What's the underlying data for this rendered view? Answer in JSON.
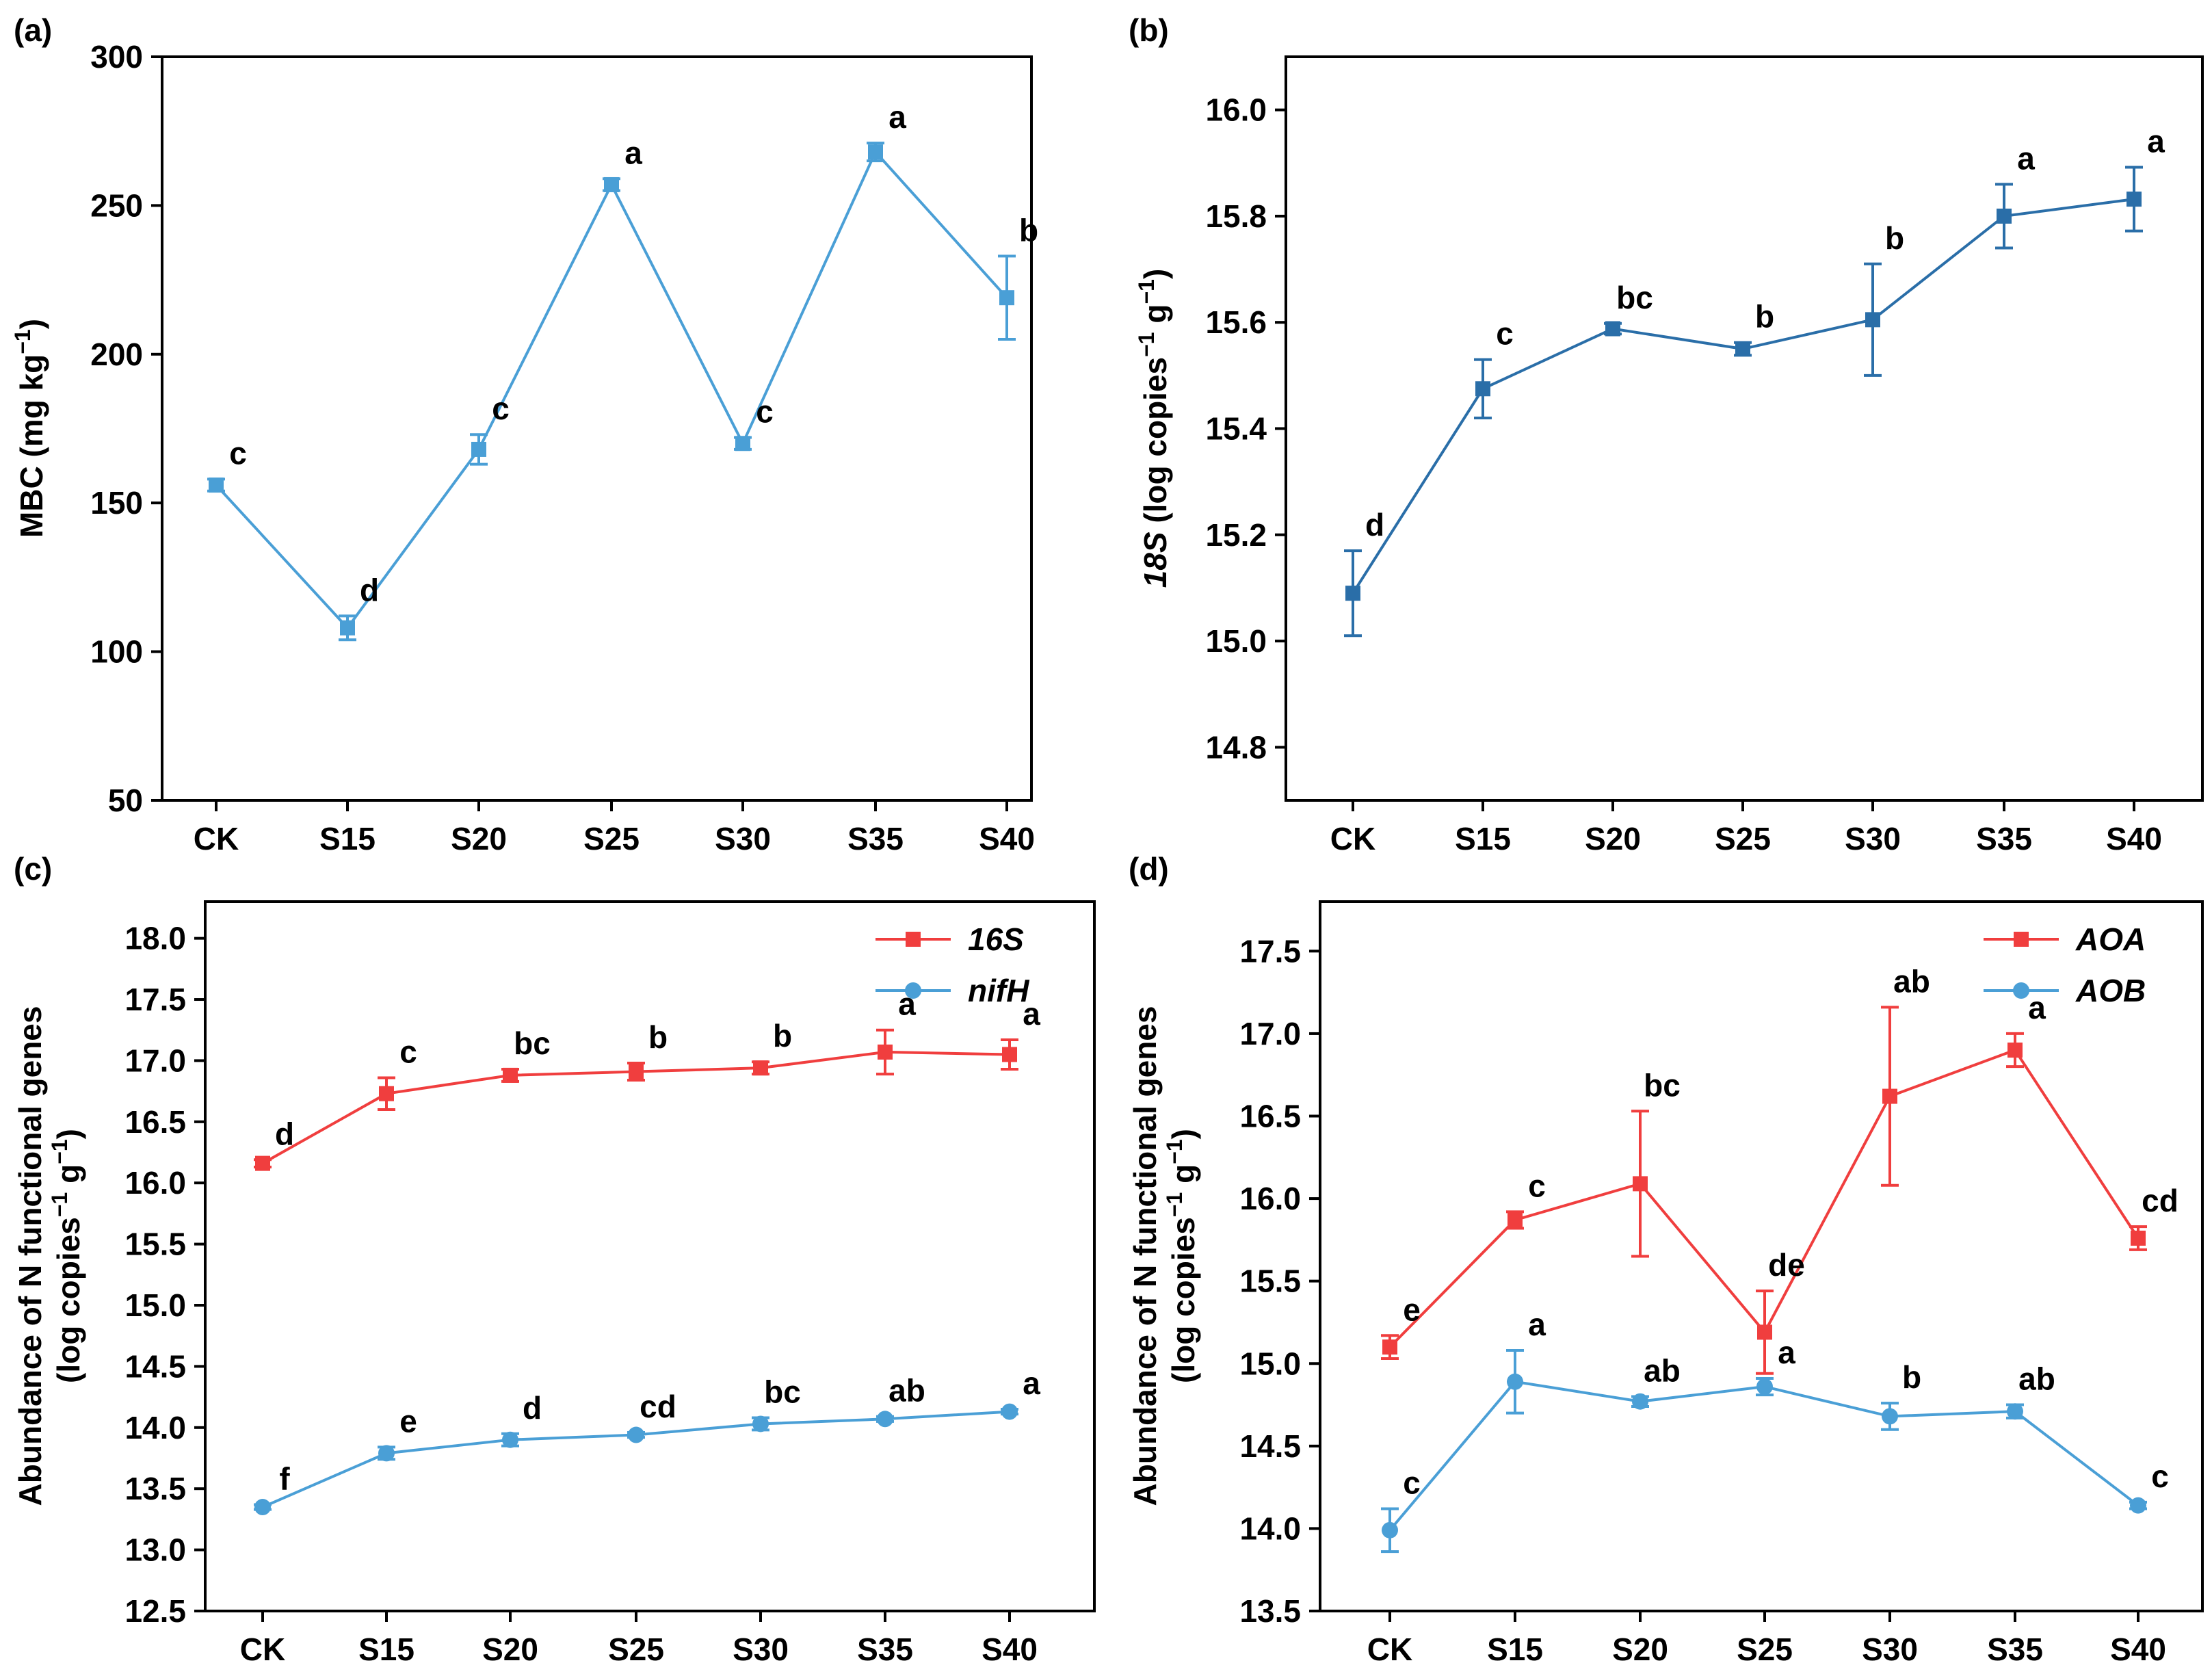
{
  "colors": {
    "blue": "#4A9FD6",
    "dark_blue": "#2A6EA8",
    "red": "#F03E3E",
    "axis": "#000000"
  },
  "chart_data": [
    {
      "panel": "(a)",
      "type": "line",
      "categories": [
        "CK",
        "S15",
        "S20",
        "S25",
        "S30",
        "S35",
        "S40"
      ],
      "ylabel_parts": [
        "MBC (mg kg",
        "−1",
        ")"
      ],
      "ylim": [
        50,
        300
      ],
      "yticks": [
        "50",
        "100",
        "150",
        "200",
        "250",
        "300"
      ],
      "legend": false,
      "series": [
        {
          "name": "MBC",
          "color": "#4A9FD6",
          "marker": "square",
          "values": [
            156,
            108,
            168,
            257,
            170,
            268,
            219
          ],
          "errors": [
            2,
            4,
            5,
            2,
            2,
            3,
            14
          ],
          "letters": [
            "c",
            "d",
            "c",
            "a",
            "c",
            "a",
            "b"
          ]
        }
      ]
    },
    {
      "panel": "(b)",
      "type": "line",
      "categories": [
        "CK",
        "S15",
        "S20",
        "S25",
        "S30",
        "S35",
        "S40"
      ],
      "ylabel_parts": [
        "18S",
        " (log copies",
        "−1",
        " g",
        "−1",
        ")"
      ],
      "ylim": [
        14.7,
        16.1
      ],
      "yticks": [
        "14.8",
        "15.0",
        "15.2",
        "15.4",
        "15.6",
        "15.8",
        "16.0"
      ],
      "legend": false,
      "series": [
        {
          "name": "18S",
          "color": "#2A6EA8",
          "marker": "square",
          "values": [
            15.09,
            15.475,
            15.588,
            15.55,
            15.605,
            15.8,
            15.832
          ],
          "errors": [
            0.08,
            0.055,
            0.01,
            0.012,
            0.105,
            0.06,
            0.06
          ],
          "letters": [
            "d",
            "c",
            "bc",
            "b",
            "b",
            "a",
            "a"
          ]
        }
      ]
    },
    {
      "panel": "(c)",
      "type": "line",
      "categories": [
        "CK",
        "S15",
        "S20",
        "S25",
        "S30",
        "S35",
        "S40"
      ],
      "ylabel_lines": [
        "Abundance of N functional genes",
        "(log copies",
        "−1",
        " g",
        "−1",
        ")"
      ],
      "ylim": [
        12.5,
        18.3
      ],
      "yticks": [
        "12.5",
        "13.0",
        "13.5",
        "14.0",
        "14.5",
        "15.0",
        "15.5",
        "16.0",
        "16.5",
        "17.0",
        "17.5",
        "18.0"
      ],
      "legend": true,
      "series": [
        {
          "name": "16S",
          "color": "#F03E3E",
          "marker": "square",
          "values": [
            16.16,
            16.73,
            16.88,
            16.91,
            16.94,
            17.07,
            17.05
          ],
          "errors": [
            0.03,
            0.13,
            0.05,
            0.07,
            0.05,
            0.18,
            0.12
          ],
          "letters": [
            "d",
            "c",
            "bc",
            "b",
            "b",
            "a",
            "a"
          ]
        },
        {
          "name": "nifH",
          "color": "#4A9FD6",
          "marker": "circle",
          "values": [
            13.35,
            13.79,
            13.9,
            13.94,
            14.03,
            14.07,
            14.13
          ],
          "errors": [
            0.02,
            0.05,
            0.05,
            0.02,
            0.05,
            0.02,
            0.02
          ],
          "letters": [
            "f",
            "e",
            "d",
            "cd",
            "bc",
            "ab",
            "a"
          ]
        }
      ]
    },
    {
      "panel": "(d)",
      "type": "line",
      "categories": [
        "CK",
        "S15",
        "S20",
        "S25",
        "S30",
        "S35",
        "S40"
      ],
      "ylabel_lines": [
        "Abundance of N functional genes",
        "(log copies",
        "−1",
        " g",
        "−1",
        ")"
      ],
      "ylim": [
        13.5,
        17.8
      ],
      "yticks": [
        "13.5",
        "14.0",
        "14.5",
        "15.0",
        "15.5",
        "16.0",
        "16.5",
        "17.0",
        "17.5"
      ],
      "legend": true,
      "series": [
        {
          "name": "AOA",
          "color": "#F03E3E",
          "marker": "square",
          "values": [
            15.1,
            15.87,
            16.09,
            15.19,
            16.62,
            16.9,
            15.76
          ],
          "errors": [
            0.07,
            0.05,
            0.44,
            0.25,
            0.54,
            0.1,
            0.07
          ],
          "letters": [
            "e",
            "c",
            "bc",
            "de",
            "ab",
            "a",
            "cd"
          ]
        },
        {
          "name": "AOB",
          "color": "#4A9FD6",
          "marker": "circle",
          "values": [
            13.99,
            14.89,
            14.77,
            14.86,
            14.68,
            14.71,
            14.14
          ],
          "errors": [
            0.13,
            0.19,
            0.03,
            0.05,
            0.08,
            0.04,
            0.02
          ],
          "letters": [
            "c",
            "a",
            "ab",
            "a",
            "b",
            "ab",
            "c"
          ]
        }
      ]
    }
  ]
}
